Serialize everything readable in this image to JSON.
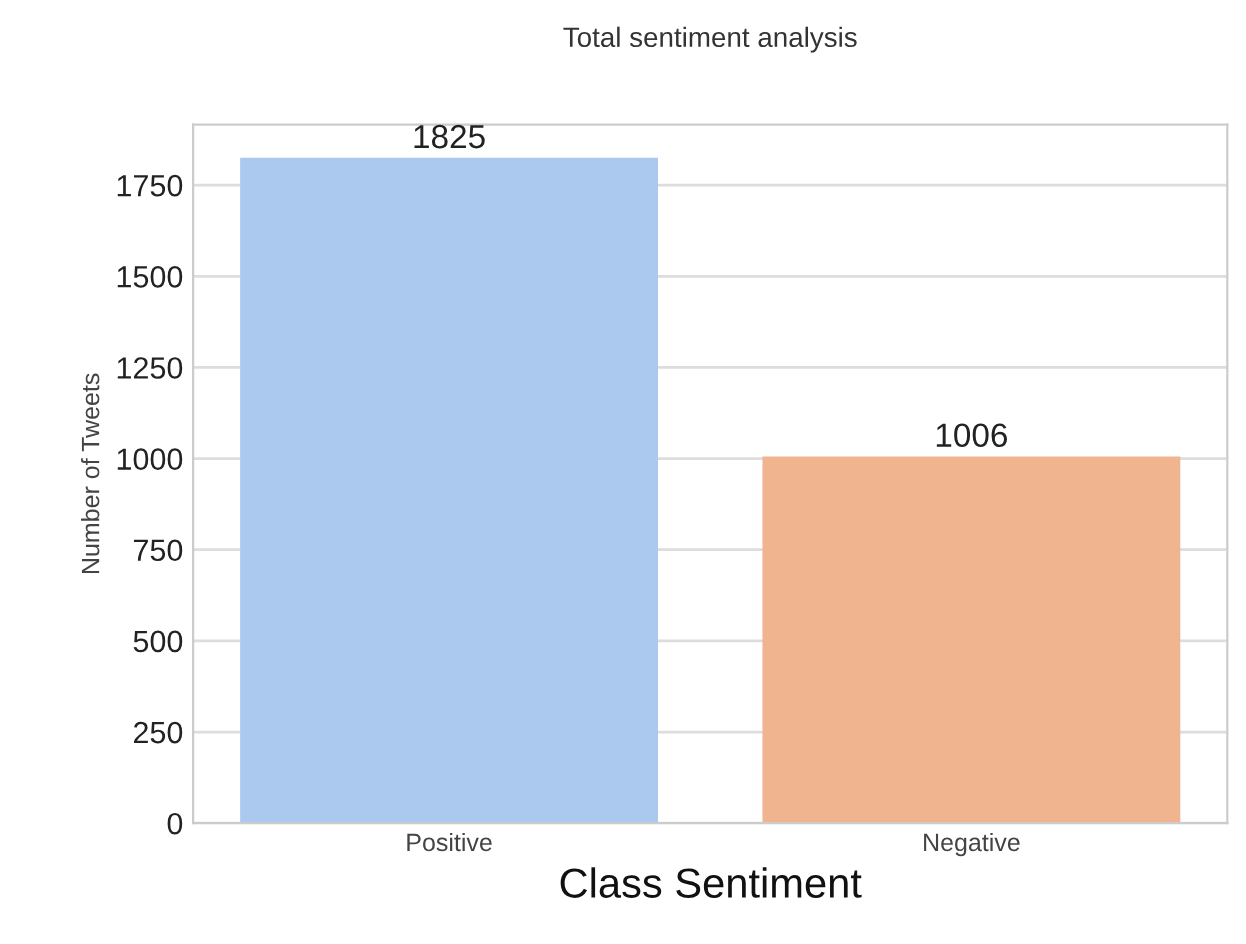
{
  "chart_data": {
    "type": "bar",
    "title": "Total sentiment analysis",
    "xlabel": "Class Sentiment",
    "ylabel": "Number of Tweets",
    "categories": [
      "Positive",
      "Negative"
    ],
    "values": [
      1825,
      1006
    ],
    "colors": [
      "#abc9ee",
      "#f0b48f"
    ],
    "ylim": [
      0,
      1916
    ],
    "yticks": [
      0,
      250,
      500,
      750,
      1000,
      1250,
      1500,
      1750
    ],
    "grid": "y",
    "data_labels": true
  }
}
